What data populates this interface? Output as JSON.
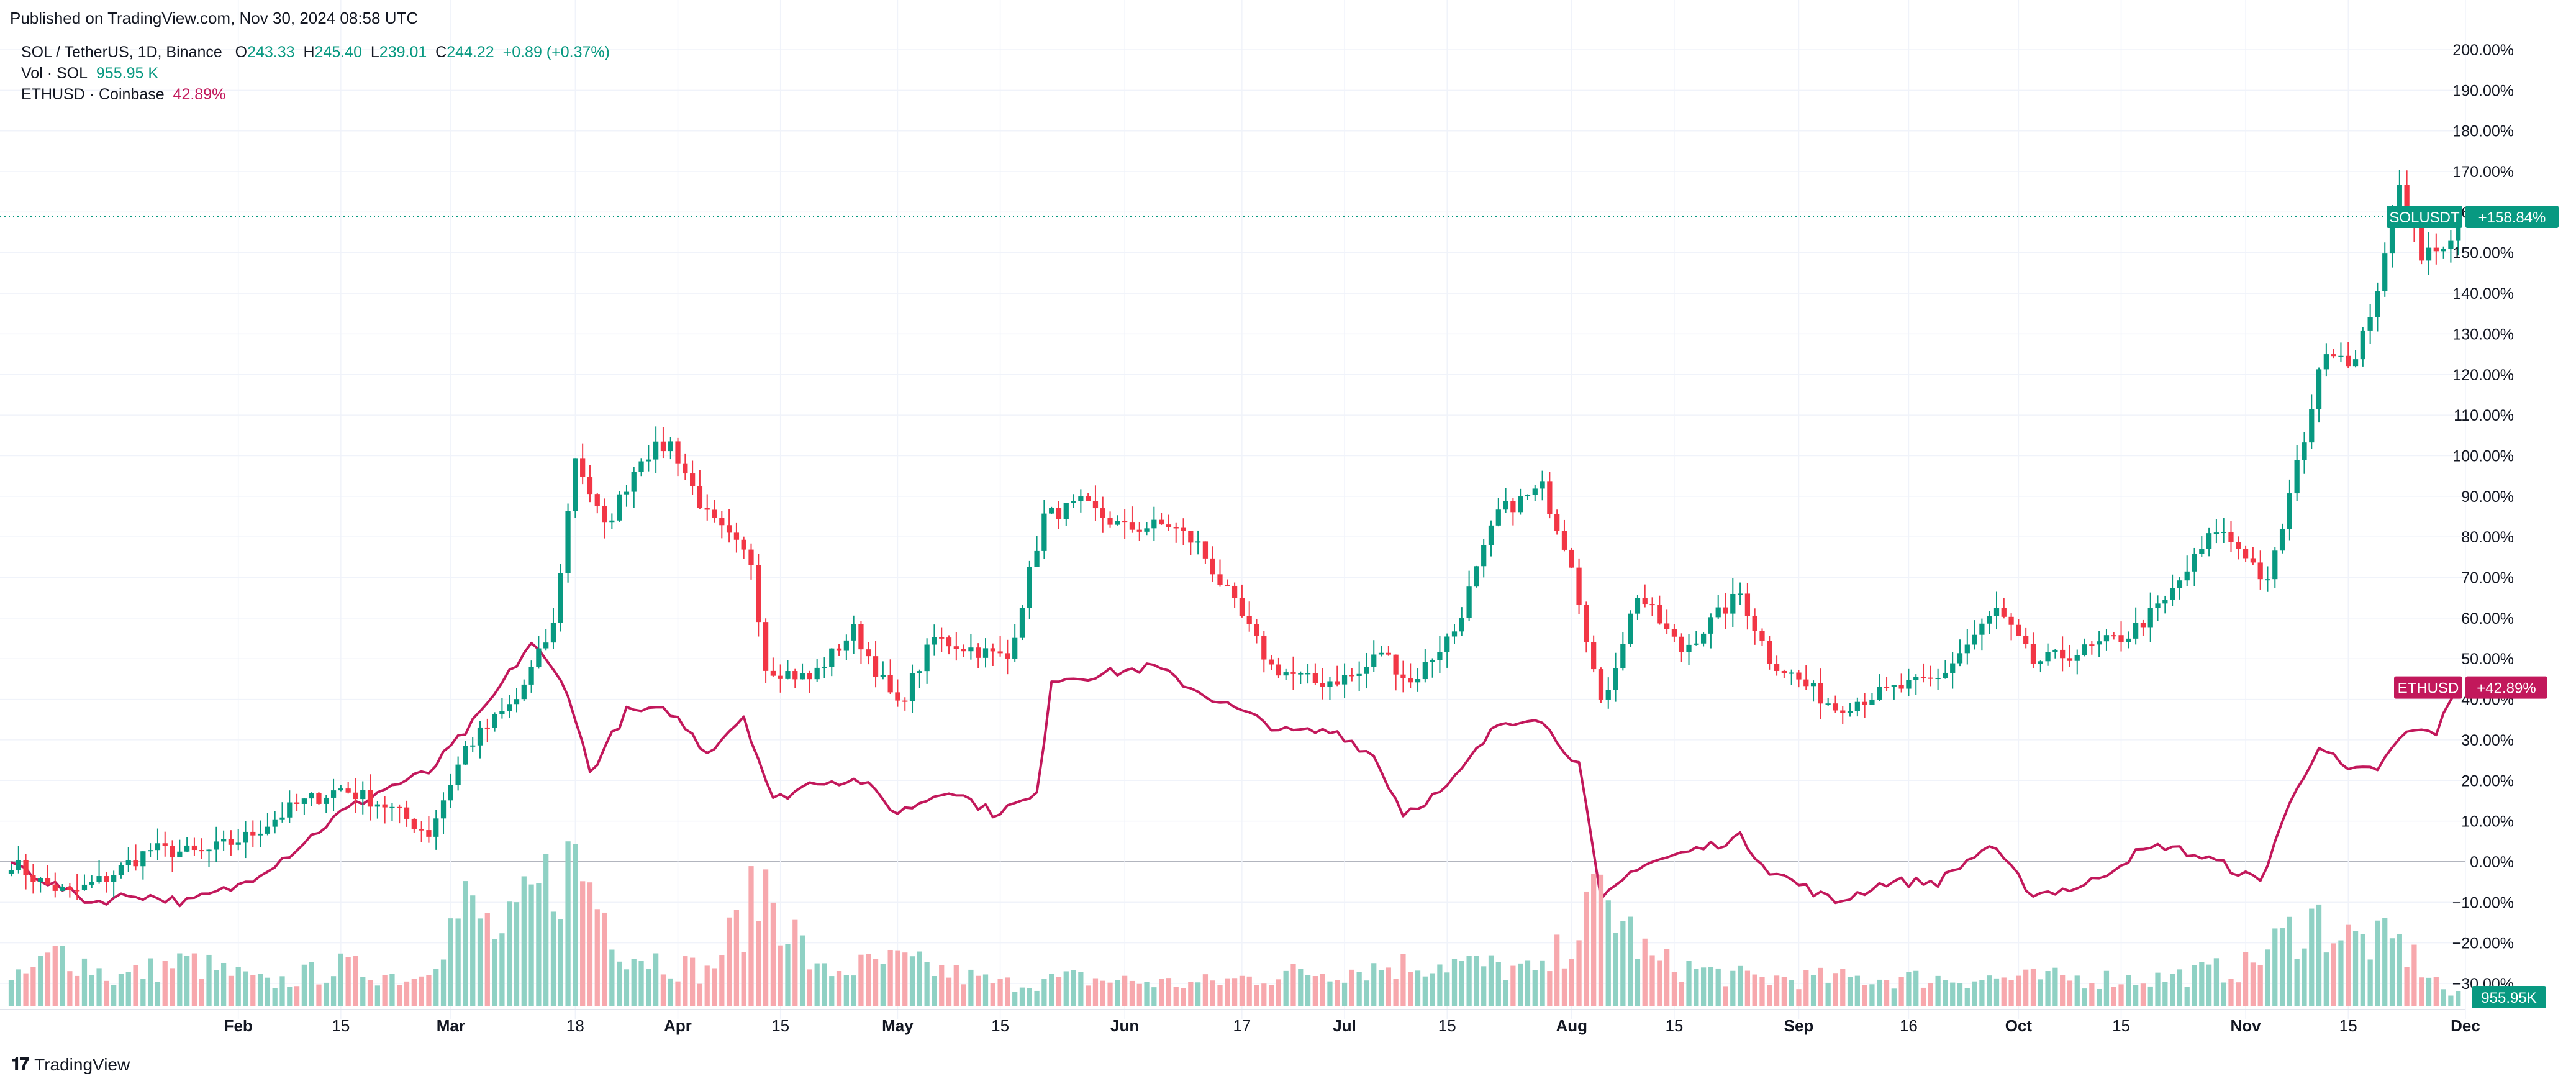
{
  "header": {
    "published": "Published on TradingView.com, Nov 30, 2024 08:58 UTC",
    "symbol_line": "SOL / TetherUS, 1D, Binance",
    "o_label": "O",
    "o_value": "243.33",
    "h_label": "H",
    "h_value": "245.40",
    "l_label": "L",
    "l_value": "239.01",
    "c_label": "C",
    "c_value": "244.22",
    "change": "+0.89 (+0.37%)",
    "vol_label": "Vol · SOL",
    "vol_value": "955.95 K",
    "eth_label": "ETHUSD · Coinbase",
    "eth_value": "42.89%"
  },
  "footer": {
    "brand": "TradingView",
    "brand_icon": "tradingview-logo-icon"
  },
  "colors": {
    "up": "#089981",
    "down": "#f23645",
    "eth": "#c2185b",
    "vol_up": "#8fd1c4",
    "vol_down": "#f7a8ad",
    "grid": "#f0f3fa"
  },
  "chart_data": {
    "type": "candlestick",
    "x_range": [
      "2024-01-01",
      "2024-12-01"
    ],
    "ylim": [
      -30,
      200
    ],
    "y_ticks": [
      "200.00%",
      "190.00%",
      "180.00%",
      "170.00%",
      "160.00%",
      "150.00%",
      "140.00%",
      "130.00%",
      "120.00%",
      "110.00%",
      "100.00%",
      "90.00%",
      "80.00%",
      "70.00%",
      "60.00%",
      "50.00%",
      "40.00%",
      "30.00%",
      "20.00%",
      "10.00%",
      "0.00%",
      "−10.00%",
      "−20.00%",
      "−30.00%"
    ],
    "x_ticks": [
      {
        "date": "2024-02-01",
        "label": "Feb"
      },
      {
        "date": "2024-02-15",
        "label": "15"
      },
      {
        "date": "2024-03-01",
        "label": "Mar"
      },
      {
        "date": "2024-03-18",
        "label": "18"
      },
      {
        "date": "2024-04-01",
        "label": "Apr"
      },
      {
        "date": "2024-04-15",
        "label": "15"
      },
      {
        "date": "2024-05-01",
        "label": "May"
      },
      {
        "date": "2024-05-15",
        "label": "15"
      },
      {
        "date": "2024-06-01",
        "label": "Jun"
      },
      {
        "date": "2024-06-17",
        "label": "17"
      },
      {
        "date": "2024-07-01",
        "label": "Jul"
      },
      {
        "date": "2024-07-15",
        "label": "15"
      },
      {
        "date": "2024-08-01",
        "label": "Aug"
      },
      {
        "date": "2024-08-15",
        "label": "15"
      },
      {
        "date": "2024-09-01",
        "label": "Sep"
      },
      {
        "date": "2024-09-16",
        "label": "16"
      },
      {
        "date": "2024-10-01",
        "label": "Oct"
      },
      {
        "date": "2024-10-15",
        "label": "15"
      },
      {
        "date": "2024-11-01",
        "label": "Nov"
      },
      {
        "date": "2024-11-15",
        "label": "15"
      },
      {
        "date": "2024-12-01",
        "label": "Dec"
      }
    ],
    "sol_last": 158.84,
    "eth_last": 42.89,
    "sol_label": "SOLUSDT",
    "sol_badge": "+158.84%",
    "eth_label": "ETHUSD",
    "eth_badge": "+42.89%",
    "vol_badge": "955.95K",
    "series": [
      {
        "name": "SOLUSDT",
        "anchors": [
          [
            "2024-01-01",
            0
          ],
          [
            "2024-01-05",
            -5
          ],
          [
            "2024-01-09",
            -8
          ],
          [
            "2024-01-14",
            -4
          ],
          [
            "2024-01-20",
            3
          ],
          [
            "2024-01-27",
            2
          ],
          [
            "2024-02-02",
            6
          ],
          [
            "2024-02-09",
            14
          ],
          [
            "2024-02-15",
            18
          ],
          [
            "2024-02-21",
            14
          ],
          [
            "2024-02-27",
            7
          ],
          [
            "2024-03-03",
            28
          ],
          [
            "2024-03-10",
            40
          ],
          [
            "2024-03-15",
            58
          ],
          [
            "2024-03-18",
            100
          ],
          [
            "2024-03-22",
            82
          ],
          [
            "2024-03-27",
            100
          ],
          [
            "2024-03-31",
            103
          ],
          [
            "2024-04-05",
            85
          ],
          [
            "2024-04-11",
            74
          ],
          [
            "2024-04-13",
            48
          ],
          [
            "2024-04-19",
            45
          ],
          [
            "2024-04-25",
            57
          ],
          [
            "2024-05-01",
            38
          ],
          [
            "2024-05-06",
            55
          ],
          [
            "2024-05-12",
            52
          ],
          [
            "2024-05-16",
            50
          ],
          [
            "2024-05-21",
            85
          ],
          [
            "2024-05-26",
            88
          ],
          [
            "2024-06-01",
            82
          ],
          [
            "2024-06-07",
            83
          ],
          [
            "2024-06-11",
            78
          ],
          [
            "2024-06-15",
            66
          ],
          [
            "2024-06-21",
            48
          ],
          [
            "2024-06-27",
            44
          ],
          [
            "2024-07-03",
            46
          ],
          [
            "2024-07-06",
            52
          ],
          [
            "2024-07-10",
            44
          ],
          [
            "2024-07-16",
            57
          ],
          [
            "2024-07-22",
            86
          ],
          [
            "2024-07-28",
            92
          ],
          [
            "2024-08-01",
            74
          ],
          [
            "2024-08-05",
            38
          ],
          [
            "2024-08-10",
            66
          ],
          [
            "2024-08-16",
            52
          ],
          [
            "2024-08-24",
            66
          ],
          [
            "2024-08-28",
            50
          ],
          [
            "2024-09-06",
            38
          ],
          [
            "2024-09-13",
            42
          ],
          [
            "2024-09-20",
            45
          ],
          [
            "2024-09-28",
            62
          ],
          [
            "2024-10-03",
            49
          ],
          [
            "2024-10-10",
            52
          ],
          [
            "2024-10-16",
            56
          ],
          [
            "2024-10-21",
            64
          ],
          [
            "2024-10-28",
            82
          ],
          [
            "2024-11-01",
            76
          ],
          [
            "2024-11-04",
            68
          ],
          [
            "2024-11-07",
            90
          ],
          [
            "2024-11-12",
            127
          ],
          [
            "2024-11-16",
            123
          ],
          [
            "2024-11-20",
            148
          ],
          [
            "2024-11-22",
            168
          ],
          [
            "2024-11-25",
            150
          ],
          [
            "2024-11-28",
            150
          ],
          [
            "2024-11-30",
            158.84
          ]
        ]
      },
      {
        "name": "ETHUSD",
        "anchors": [
          [
            "2024-01-01",
            0
          ],
          [
            "2024-01-06",
            -5
          ],
          [
            "2024-01-12",
            -10
          ],
          [
            "2024-01-18",
            -8
          ],
          [
            "2024-01-25",
            -10
          ],
          [
            "2024-02-01",
            -6
          ],
          [
            "2024-02-08",
            2
          ],
          [
            "2024-02-15",
            12
          ],
          [
            "2024-02-21",
            18
          ],
          [
            "2024-02-27",
            22
          ],
          [
            "2024-03-05",
            36
          ],
          [
            "2024-03-12",
            54
          ],
          [
            "2024-03-17",
            42
          ],
          [
            "2024-03-20",
            22
          ],
          [
            "2024-03-25",
            37
          ],
          [
            "2024-03-31",
            37
          ],
          [
            "2024-04-05",
            27
          ],
          [
            "2024-04-10",
            36
          ],
          [
            "2024-04-14",
            15
          ],
          [
            "2024-04-20",
            20
          ],
          [
            "2024-04-26",
            20
          ],
          [
            "2024-05-01",
            12
          ],
          [
            "2024-05-08",
            18
          ],
          [
            "2024-05-14",
            12
          ],
          [
            "2024-05-20",
            16
          ],
          [
            "2024-05-22",
            45
          ],
          [
            "2024-05-28",
            46
          ],
          [
            "2024-06-05",
            48
          ],
          [
            "2024-06-11",
            42
          ],
          [
            "2024-06-18",
            36
          ],
          [
            "2024-06-23",
            32
          ],
          [
            "2024-06-30",
            32
          ],
          [
            "2024-07-05",
            26
          ],
          [
            "2024-07-09",
            12
          ],
          [
            "2024-07-15",
            18
          ],
          [
            "2024-07-22",
            34
          ],
          [
            "2024-07-27",
            36
          ],
          [
            "2024-08-02",
            24
          ],
          [
            "2024-08-05",
            -10
          ],
          [
            "2024-08-10",
            -1
          ],
          [
            "2024-08-16",
            2
          ],
          [
            "2024-08-24",
            6
          ],
          [
            "2024-08-28",
            -2
          ],
          [
            "2024-09-06",
            -10
          ],
          [
            "2024-09-13",
            -5
          ],
          [
            "2024-09-20",
            -5
          ],
          [
            "2024-09-27",
            4
          ],
          [
            "2024-10-03",
            -8
          ],
          [
            "2024-10-10",
            -6
          ],
          [
            "2024-10-17",
            2
          ],
          [
            "2024-10-21",
            4
          ],
          [
            "2024-10-28",
            0
          ],
          [
            "2024-11-03",
            -5
          ],
          [
            "2024-11-06",
            10
          ],
          [
            "2024-11-11",
            29
          ],
          [
            "2024-11-15",
            22
          ],
          [
            "2024-11-19",
            23
          ],
          [
            "2024-11-23",
            32
          ],
          [
            "2024-11-27",
            32
          ],
          [
            "2024-11-30",
            42.89
          ]
        ]
      }
    ],
    "volume_anchors": [
      [
        "2024-01-01",
        4
      ],
      [
        "2024-01-08",
        10
      ],
      [
        "2024-01-15",
        5
      ],
      [
        "2024-01-25",
        8
      ],
      [
        "2024-02-05",
        4
      ],
      [
        "2024-02-15",
        7
      ],
      [
        "2024-02-25",
        5
      ],
      [
        "2024-03-03",
        18
      ],
      [
        "2024-03-08",
        12
      ],
      [
        "2024-03-14",
        22
      ],
      [
        "2024-03-18",
        26
      ],
      [
        "2024-03-25",
        10
      ],
      [
        "2024-04-05",
        6
      ],
      [
        "2024-04-13",
        22
      ],
      [
        "2024-04-20",
        6
      ],
      [
        "2024-05-01",
        8
      ],
      [
        "2024-05-15",
        4
      ],
      [
        "2024-05-25",
        5
      ],
      [
        "2024-06-10",
        4
      ],
      [
        "2024-06-25",
        6
      ],
      [
        "2024-07-05",
        7
      ],
      [
        "2024-07-15",
        8
      ],
      [
        "2024-07-28",
        6
      ],
      [
        "2024-08-02",
        14
      ],
      [
        "2024-08-05",
        20
      ],
      [
        "2024-08-12",
        8
      ],
      [
        "2024-08-25",
        5
      ],
      [
        "2024-09-10",
        5
      ],
      [
        "2024-10-01",
        5
      ],
      [
        "2024-10-20",
        5
      ],
      [
        "2024-11-01",
        7
      ],
      [
        "2024-11-10",
        16
      ],
      [
        "2024-11-15",
        12
      ],
      [
        "2024-11-22",
        11
      ],
      [
        "2024-11-29",
        2
      ]
    ]
  }
}
